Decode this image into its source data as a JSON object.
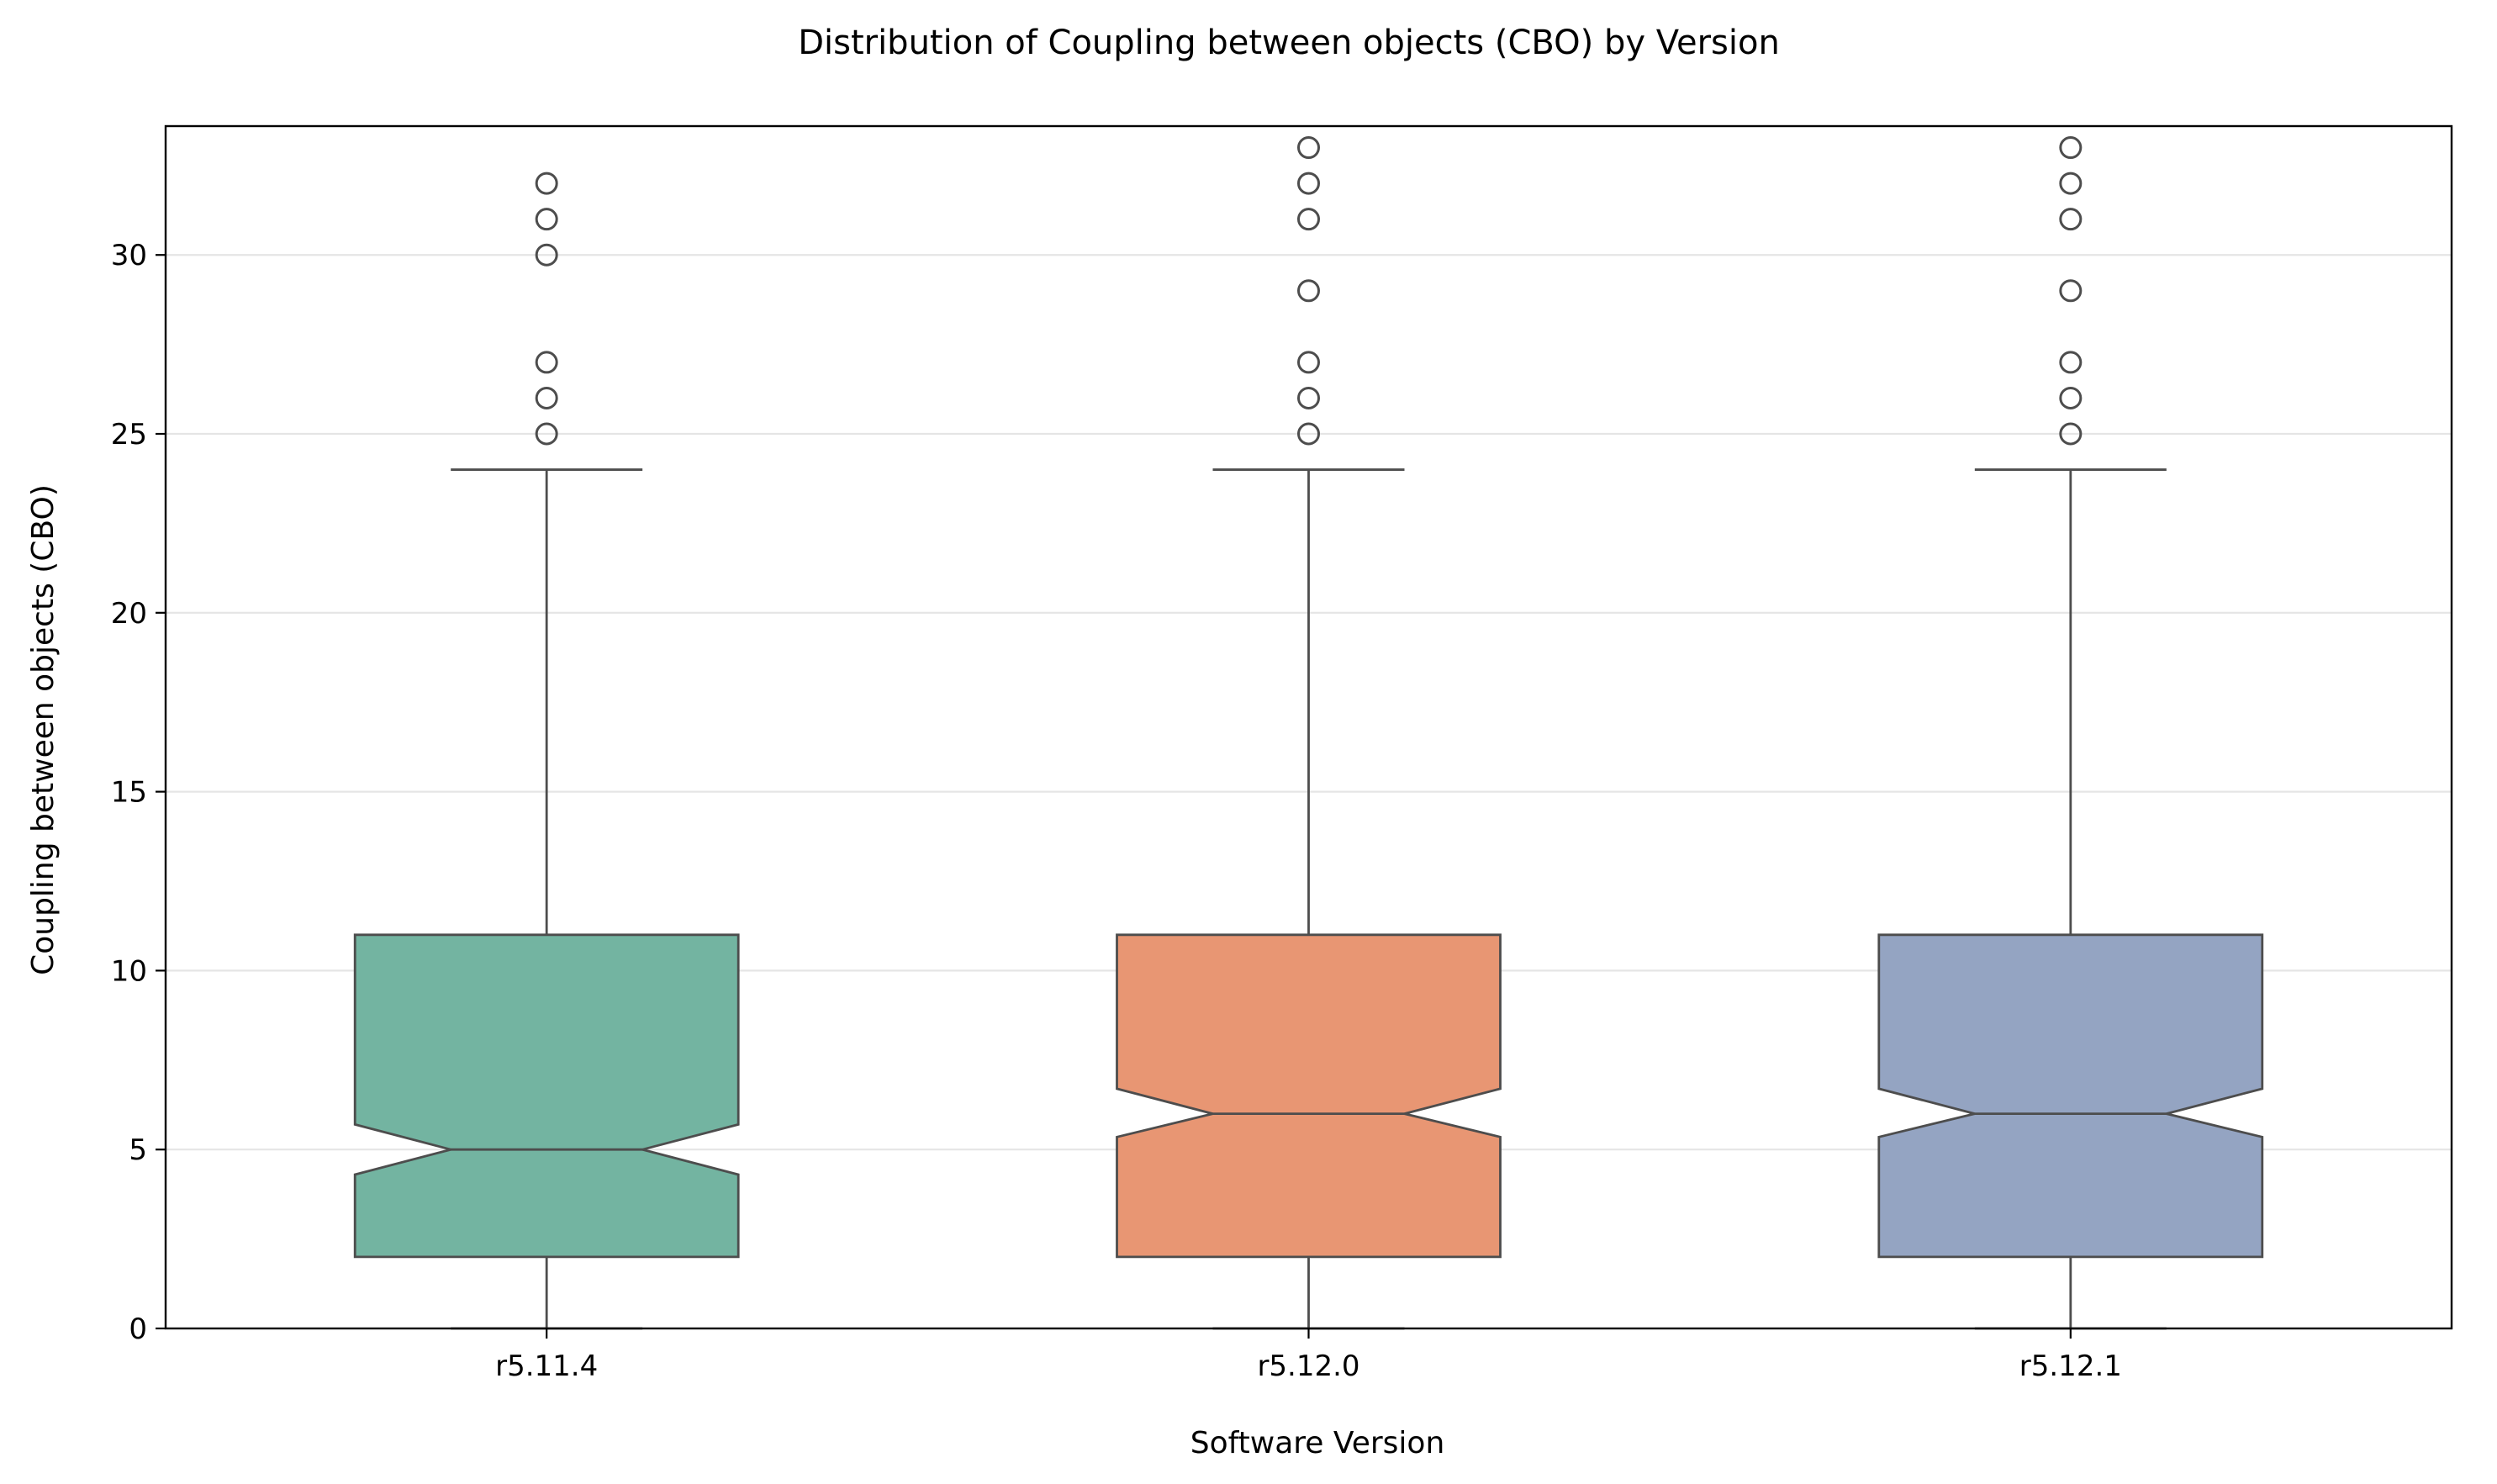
{
  "chart_data": {
    "type": "boxplot",
    "notched": true,
    "title": "Distribution of Coupling between objects (CBO) by Version",
    "xlabel": "Software Version",
    "ylabel": "Coupling between objects (CBO)",
    "ylim": [
      0,
      33.6
    ],
    "yticks": [
      "0",
      "5",
      "10",
      "15",
      "20",
      "25",
      "30"
    ],
    "grid": "horizontal",
    "categories": [
      "r5.11.4",
      "r5.12.0",
      "r5.12.1"
    ],
    "colors": {
      "r5.11.4": "#73b4a1",
      "r5.12.0": "#e89673",
      "r5.12.1": "#94a4c2",
      "edge": "#4d4d4d",
      "grid": "#e5e5e5",
      "frame": "#000000"
    },
    "boxes": [
      {
        "category": "r5.11.4",
        "whisker_low": 0,
        "q1": 2,
        "notch_low": 4.3,
        "median": 5,
        "notch_high": 5.7,
        "q3": 11,
        "whisker_high": 24,
        "outliers": [
          25,
          26,
          27,
          30,
          31,
          32
        ]
      },
      {
        "category": "r5.12.0",
        "whisker_low": 0,
        "q1": 2,
        "notch_low": 5.35,
        "median": 6,
        "notch_high": 6.7,
        "q3": 11,
        "whisker_high": 24,
        "outliers": [
          25,
          26,
          27,
          29,
          31,
          32,
          33
        ]
      },
      {
        "category": "r5.12.1",
        "whisker_low": 0,
        "q1": 2,
        "notch_low": 5.35,
        "median": 6,
        "notch_high": 6.7,
        "q3": 11,
        "whisker_high": 24,
        "outliers": [
          25,
          26,
          27,
          29,
          31,
          32,
          33
        ]
      }
    ]
  }
}
